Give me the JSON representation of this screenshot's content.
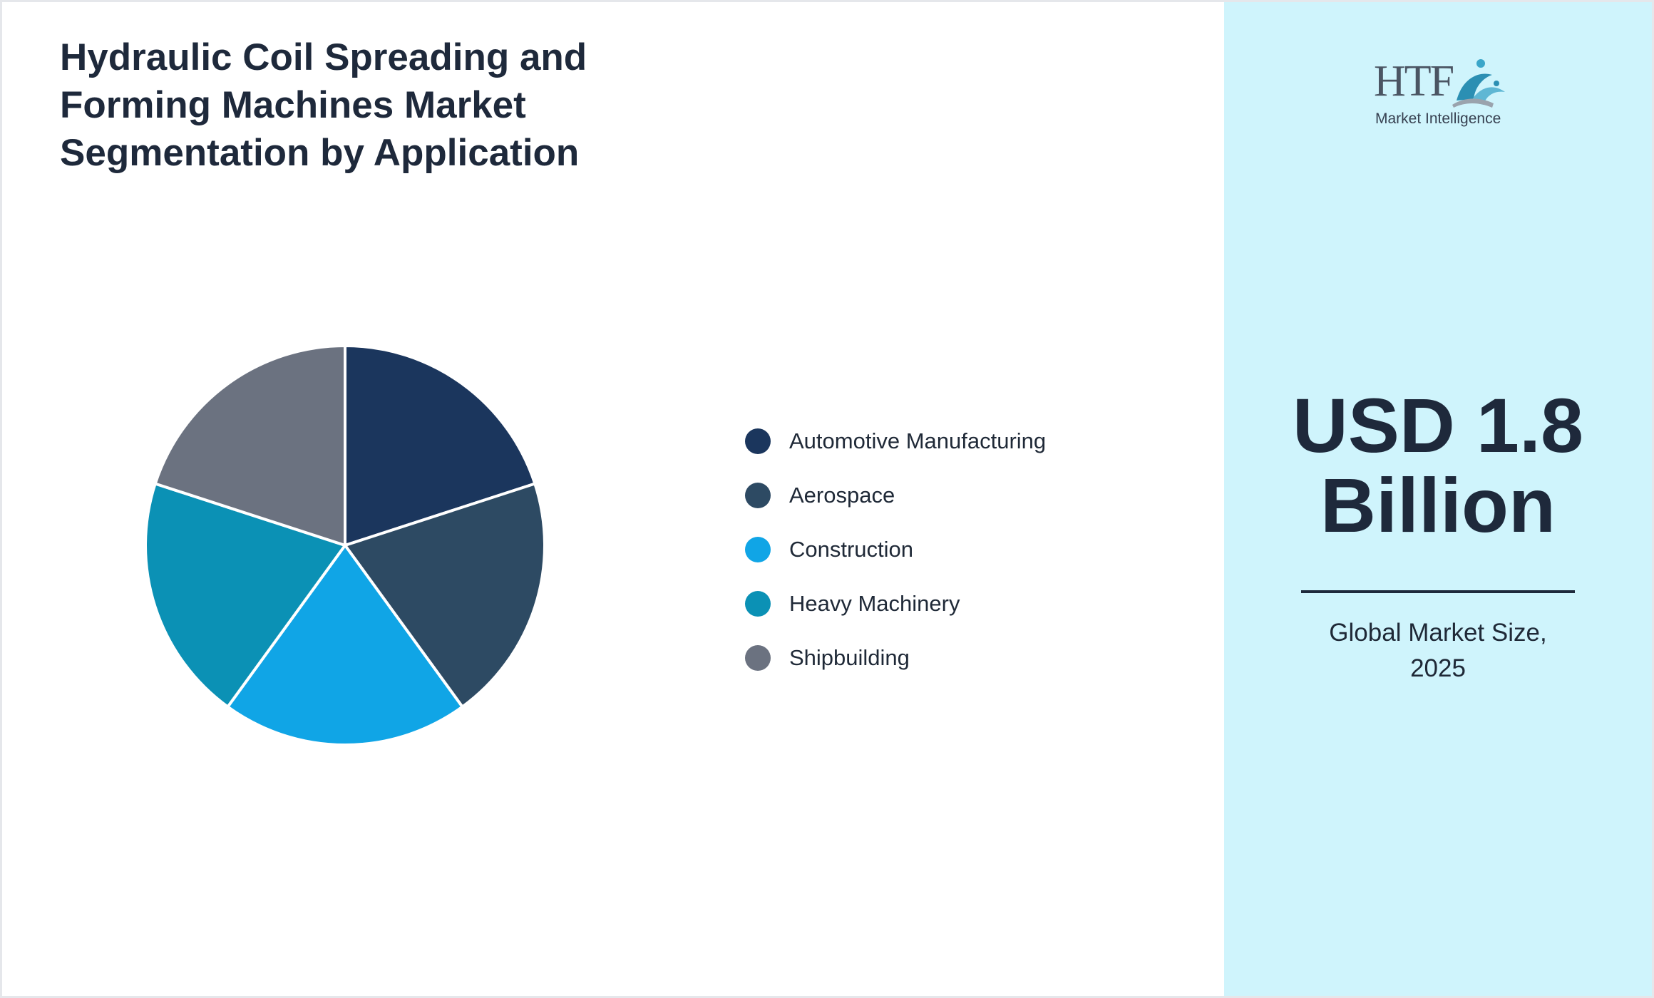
{
  "header": {
    "title_lines": [
      "Hydraulic Coil Spreading and",
      "Forming Machines Market",
      "Segmentation by Application"
    ]
  },
  "chart_data": {
    "type": "pie",
    "title": "Hydraulic Coil Spreading and Forming Machines Market Segmentation by Application",
    "categories": [
      "Automotive Manufacturing",
      "Aerospace",
      "Construction",
      "Heavy Machinery",
      "Shipbuilding"
    ],
    "values": [
      20,
      20,
      20,
      20,
      20
    ],
    "colors": [
      "#1b365d",
      "#2d4a63",
      "#10a5e6",
      "#0b91b5",
      "#6b7280"
    ],
    "legend_position": "right"
  },
  "sidebar": {
    "logo": {
      "icon": "htf-logo-figure-icon",
      "text": "HTF",
      "subtext": "Market Intelligence"
    },
    "market_value_lines": [
      "USD 1.8",
      "Billion"
    ],
    "caption_lines": [
      "Global Market Size,",
      "2025"
    ]
  }
}
